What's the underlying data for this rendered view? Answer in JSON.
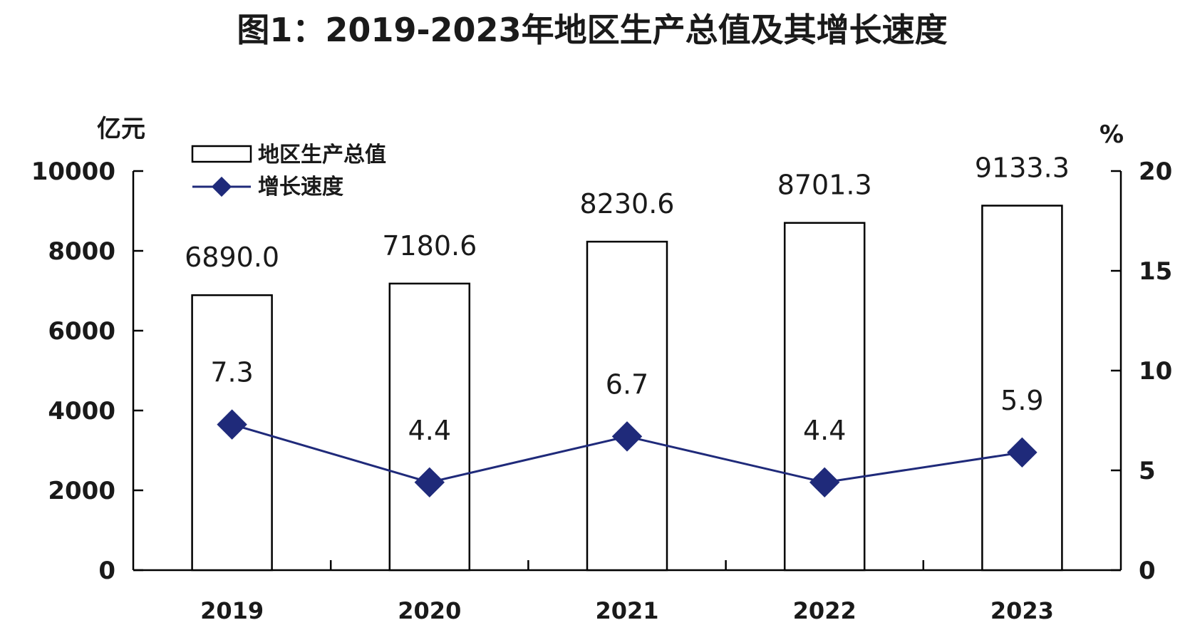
{
  "chart_data": {
    "type": "bar+line",
    "title": "图1：2019-2023年地区生产总值及其增长速度",
    "categories": [
      "2019",
      "2020",
      "2021",
      "2022",
      "2023"
    ],
    "series": [
      {
        "name": "地区生产总值",
        "type": "bar",
        "axis": "left",
        "values": [
          6890.0,
          7180.6,
          8230.6,
          8701.3,
          9133.3
        ],
        "labels": [
          "6890.0",
          "7180.6",
          "8230.6",
          "8701.3",
          "9133.3"
        ]
      },
      {
        "name": "增长速度",
        "type": "line",
        "axis": "right",
        "values": [
          7.3,
          4.4,
          6.7,
          4.4,
          5.9
        ],
        "labels": [
          "7.3",
          "4.4",
          "6.7",
          "4.4",
          "5.9"
        ]
      }
    ],
    "left_axis": {
      "unit": "亿元",
      "ylim": [
        0,
        10000
      ],
      "ticks": [
        "0",
        "2000",
        "4000",
        "6000",
        "8000",
        "10000"
      ],
      "tick_values": [
        0,
        2000,
        4000,
        6000,
        8000,
        10000
      ]
    },
    "right_axis": {
      "unit": "%",
      "ylim": [
        0,
        20
      ],
      "ticks": [
        "0",
        "5",
        "10",
        "15",
        "20"
      ],
      "tick_values": [
        0,
        5,
        10,
        15,
        20
      ]
    },
    "legend_position": "top-left",
    "grid": false,
    "colors": {
      "bar_fill": "#ffffff",
      "bar_stroke": "#000000",
      "line": "#1f2a7a",
      "marker": "#1f2a7a"
    }
  }
}
